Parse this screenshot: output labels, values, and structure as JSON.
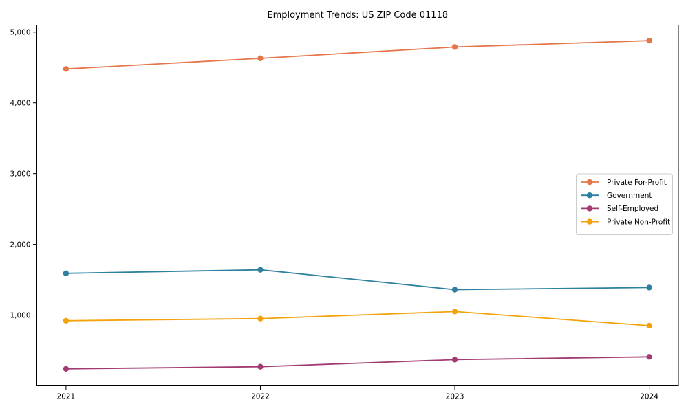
{
  "chart": {
    "title": "Employment Trends: US ZIP Code 01118"
  },
  "chart_data": {
    "type": "line",
    "title": "Employment Trends: US ZIP Code 01118",
    "xlabel": "",
    "ylabel": "",
    "x": [
      2021,
      2022,
      2023,
      2024
    ],
    "x_tick_labels": [
      "2021",
      "2022",
      "2023",
      "2024"
    ],
    "y_ticks": [
      1000,
      2000,
      3000,
      4000,
      5000
    ],
    "y_tick_labels": [
      "1,000",
      "2,000",
      "3,000",
      "4,000",
      "5,000"
    ],
    "xlim": [
      2020.85,
      2024.15
    ],
    "ylim": [
      0,
      5100
    ],
    "grid": false,
    "legend_position": "center-right",
    "series": [
      {
        "name": "Private For-Profit",
        "color": "#e5764a",
        "values": [
          4480,
          4630,
          4790,
          4880
        ]
      },
      {
        "name": "Government",
        "color": "#2e80a0",
        "values": [
          1590,
          1640,
          1360,
          1390
        ]
      },
      {
        "name": "Self-Employed",
        "color": "#a23b72",
        "values": [
          240,
          270,
          370,
          410
        ]
      },
      {
        "name": "Private Non-Profit",
        "color": "#f2a30b",
        "values": [
          920,
          950,
          1050,
          850
        ]
      }
    ]
  }
}
